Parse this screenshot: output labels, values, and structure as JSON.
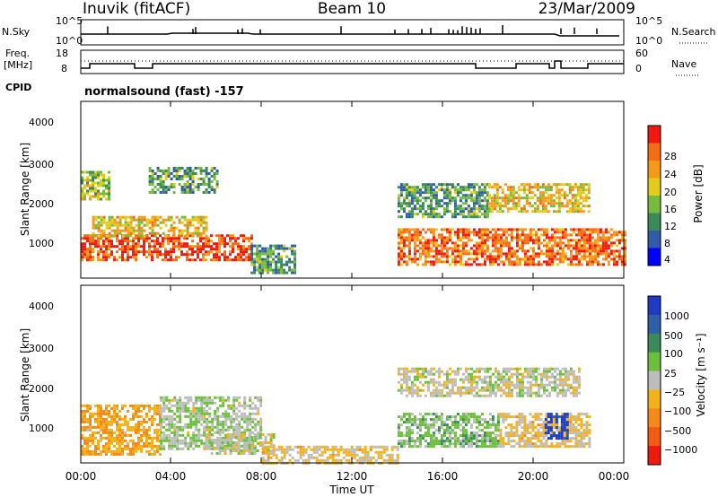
{
  "header": {
    "station": "Inuvik (fitACF)",
    "beam": "Beam 10",
    "date": "23/Mar/2009"
  },
  "top_panel": {
    "left_label": "N.Sky",
    "left_ticks": [
      "10^5",
      "10^0"
    ],
    "right_label": "N.Search",
    "right_ticks": [
      "10^5",
      "10^0"
    ]
  },
  "freq_panel": {
    "left_label_1": "Freq.",
    "left_label_2": "[MHz]",
    "left_ticks": [
      "18",
      "8"
    ],
    "right_label": "Nave",
    "right_ticks": [
      "60",
      "0"
    ]
  },
  "cpid": {
    "label": "CPID",
    "value": "normalsound (fast) -157"
  },
  "power_panel": {
    "ylabel": "Slant Range [km]",
    "ytick_labels": [
      "4000",
      "3000",
      "2000",
      "1000"
    ],
    "colorbar_label": "Power [dB]",
    "colorbar_ticks": [
      "28",
      "24",
      "20",
      "16",
      "12",
      "8",
      "4"
    ],
    "colors": [
      "#0000ff",
      "#2f5ba8",
      "#3a8a5a",
      "#77bb3e",
      "#e3cc1a",
      "#f59a18",
      "#f56e14",
      "#ee1a10"
    ]
  },
  "velocity_panel": {
    "ylabel": "Slant Range [km]",
    "ytick_labels": [
      "4000",
      "3000",
      "2000",
      "1000"
    ],
    "colorbar_label": "Velocity [m s⁻¹]",
    "colorbar_ticks": [
      "1000",
      "500",
      "100",
      "25",
      "−25",
      "−100",
      "−500",
      "−1000"
    ],
    "colors": [
      "#1f3bc2",
      "#2e5fa7",
      "#3a8a5a",
      "#6bbf3a",
      "#bdbdbd",
      "#f3b21a",
      "#f5891a",
      "#f55a14",
      "#ee1a10"
    ]
  },
  "xaxis": {
    "tick_labels": [
      "00:00",
      "04:00",
      "08:00",
      "12:00",
      "16:00",
      "20:00",
      "00:00"
    ],
    "label": "Time UT"
  },
  "chart_data": [
    {
      "type": "heatmap",
      "title": "Power",
      "xlabel": "Time UT",
      "ylabel": "Slant Range [km]",
      "xlim": [
        0,
        24
      ],
      "ylim": [
        180,
        4500
      ],
      "colorbar": "Power [dB]",
      "colorbar_range": [
        0,
        30
      ],
      "regions": [
        {
          "t0": 0.0,
          "t1": 7.5,
          "r0": 600,
          "r1": 1250,
          "value": 26
        },
        {
          "t0": 0.5,
          "t1": 5.5,
          "r0": 1200,
          "r1": 1700,
          "value": 18
        },
        {
          "t0": 0.0,
          "t1": 1.2,
          "r0": 2100,
          "r1": 2800,
          "value": 14
        },
        {
          "t0": 3.0,
          "t1": 6.0,
          "r0": 2300,
          "r1": 2900,
          "value": 10
        },
        {
          "t0": 7.5,
          "t1": 9.5,
          "r0": 300,
          "r1": 1000,
          "value": 10
        },
        {
          "t0": 14.0,
          "t1": 24.0,
          "r0": 500,
          "r1": 1400,
          "value": 24
        },
        {
          "t0": 14.0,
          "t1": 18.0,
          "r0": 1700,
          "r1": 2500,
          "value": 10
        },
        {
          "t0": 18.0,
          "t1": 22.5,
          "r0": 1800,
          "r1": 2500,
          "value": 18
        }
      ]
    },
    {
      "type": "heatmap",
      "title": "Velocity",
      "xlabel": "Time UT",
      "ylabel": "Slant Range [km]",
      "xlim": [
        0,
        24
      ],
      "ylim": [
        180,
        4500
      ],
      "colorbar": "Velocity [m s⁻¹]",
      "colorbar_range": [
        -1000,
        1000
      ],
      "regions": [
        {
          "t0": 0.0,
          "t1": 3.5,
          "r0": 400,
          "r1": 1600,
          "value": -300
        },
        {
          "t0": 3.5,
          "t1": 8.0,
          "r0": 500,
          "r1": 1800,
          "value": 80
        },
        {
          "t0": 5.5,
          "t1": 8.5,
          "r0": 400,
          "r1": 900,
          "value": 0
        },
        {
          "t0": 8.0,
          "t1": 14.0,
          "r0": 180,
          "r1": 600,
          "value": -150
        },
        {
          "t0": 14.0,
          "t1": 18.5,
          "r0": 600,
          "r1": 1400,
          "value": 200
        },
        {
          "t0": 18.5,
          "t1": 22.5,
          "r0": 600,
          "r1": 1400,
          "value": -150
        },
        {
          "t0": 20.5,
          "t1": 21.5,
          "r0": 800,
          "r1": 1400,
          "value": 900
        },
        {
          "t0": 14.0,
          "t1": 22.0,
          "r0": 1800,
          "r1": 2500,
          "value": 0
        }
      ]
    }
  ]
}
